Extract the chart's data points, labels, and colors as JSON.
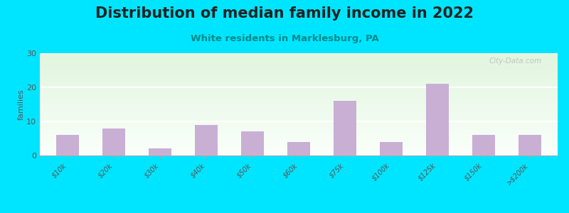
{
  "title": "Distribution of median family income in 2022",
  "subtitle": "White residents in Marklesburg, PA",
  "ylabel": "families",
  "categories": [
    "$10k",
    "$20k",
    "$30k",
    "$40k",
    "$50k",
    "$60k",
    "$75k",
    "$100k",
    "$125k",
    "$150k",
    ">$200k"
  ],
  "values": [
    6,
    8,
    2,
    9,
    7,
    4,
    16,
    4,
    21,
    6,
    6
  ],
  "bar_color": "#c9afd4",
  "background_outer": "#00e5ff",
  "ylim": [
    0,
    30
  ],
  "yticks": [
    0,
    10,
    20,
    30
  ],
  "title_fontsize": 15,
  "subtitle_fontsize": 9.5,
  "ylabel_fontsize": 8,
  "tick_fontsize": 7,
  "watermark_text": "City-Data.com"
}
